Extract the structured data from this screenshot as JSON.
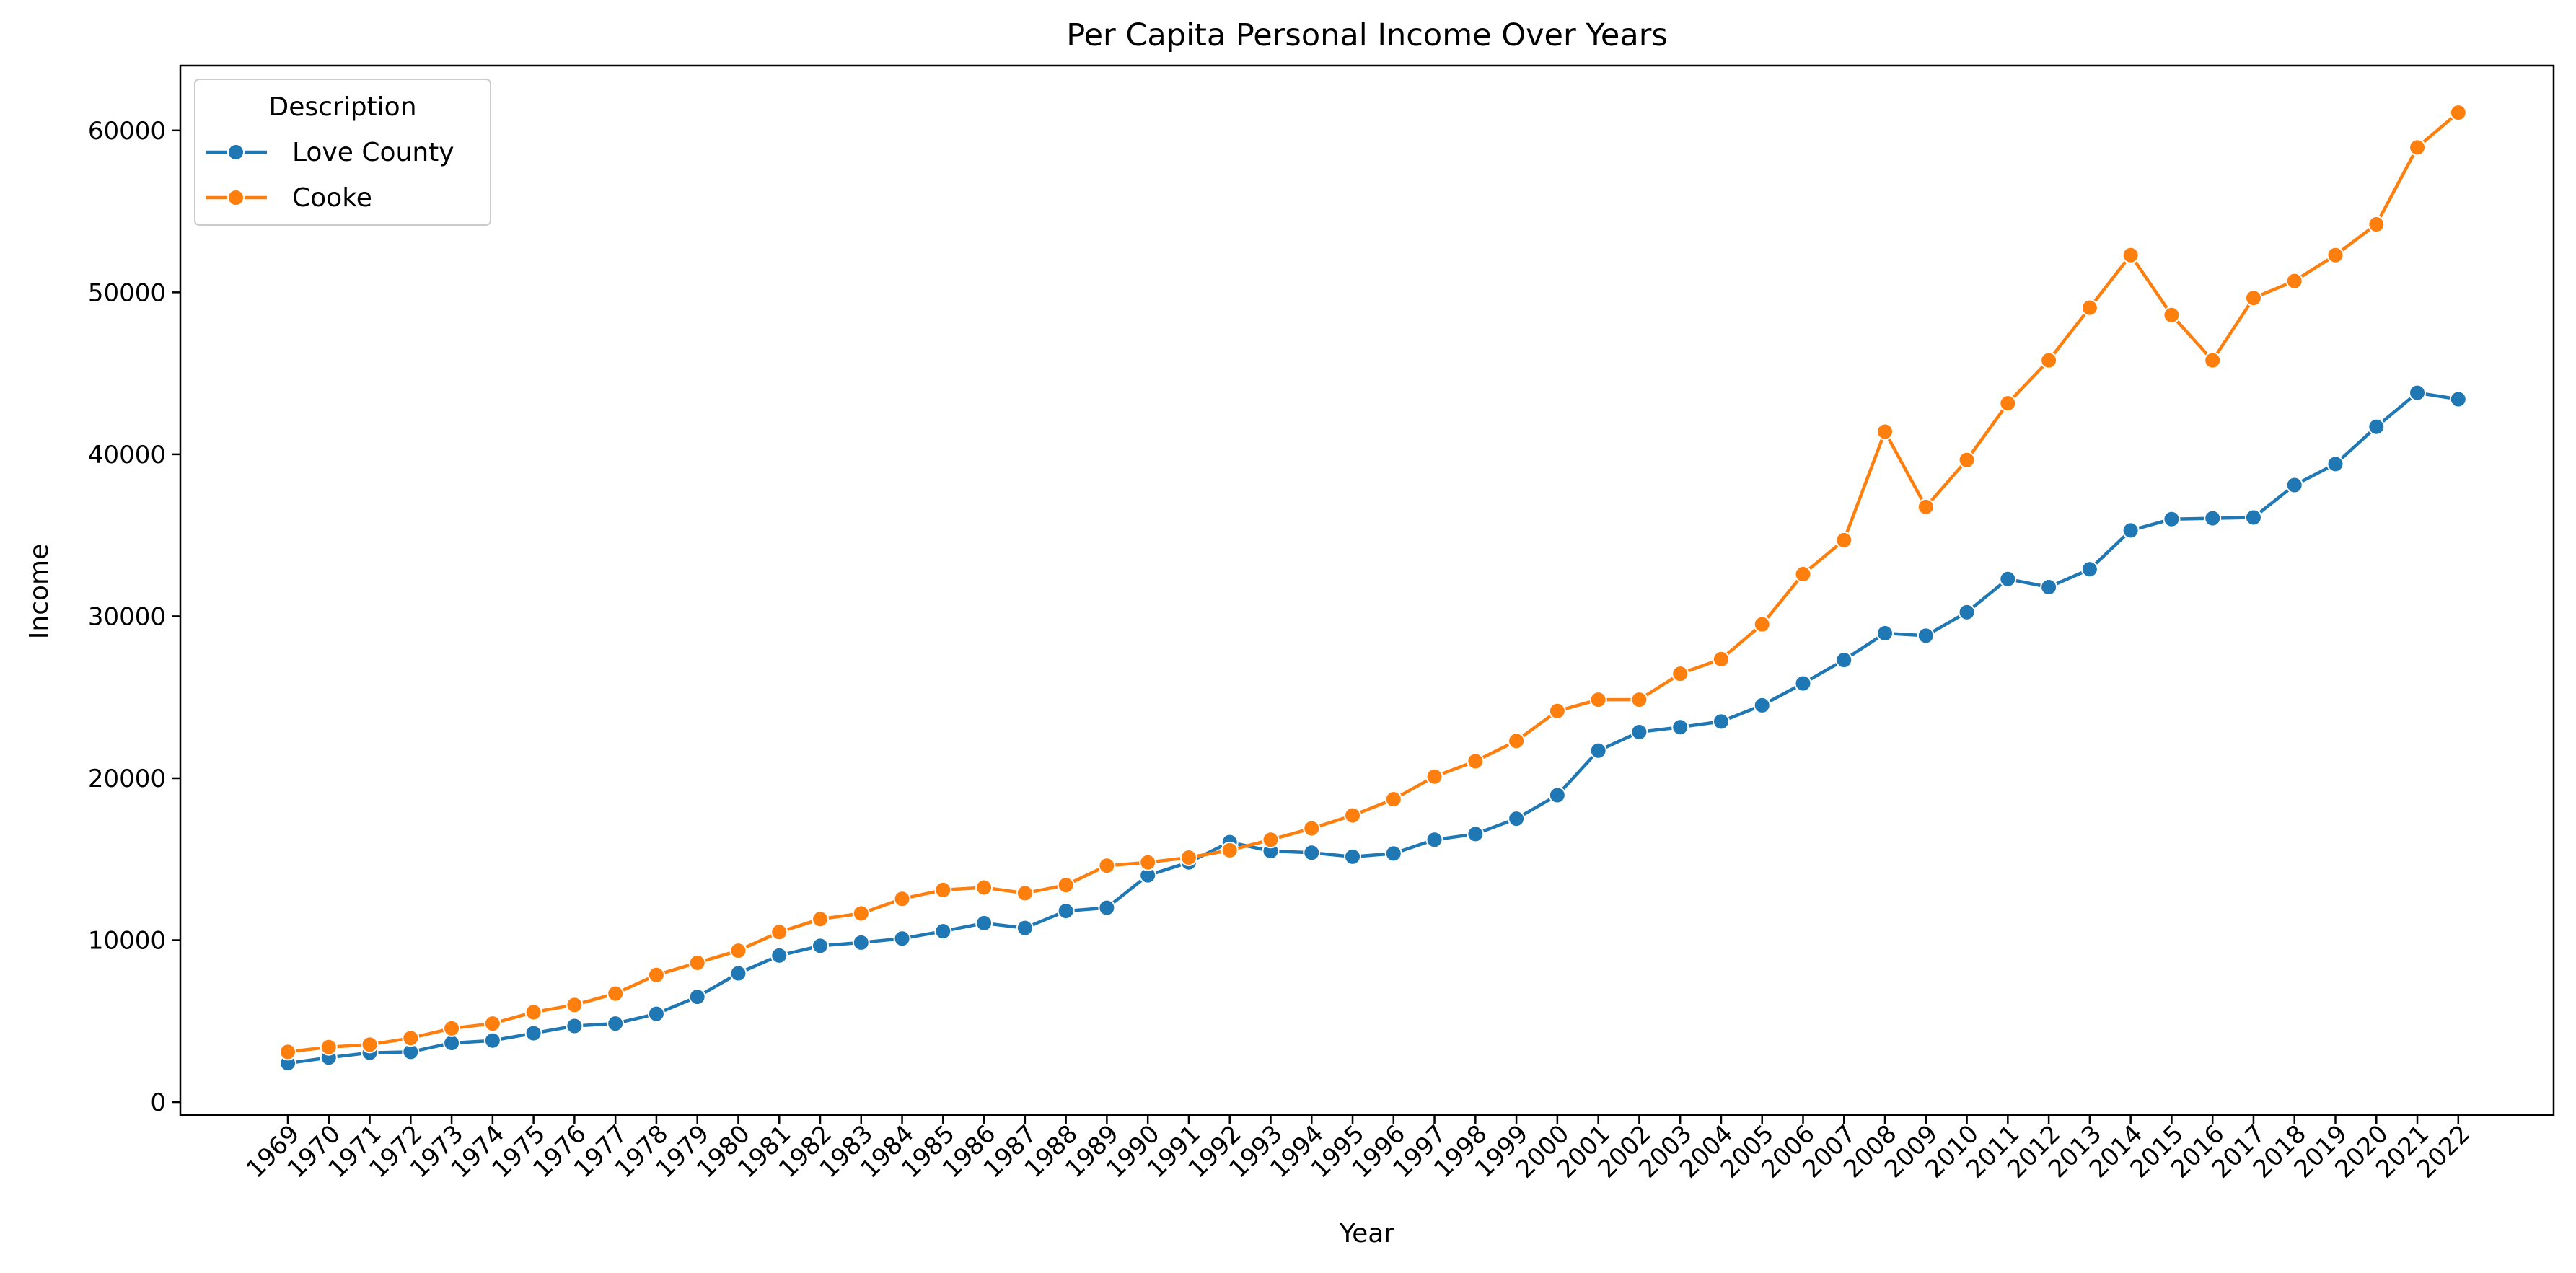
{
  "chart_data": {
    "type": "line",
    "title": "Per Capita Personal Income Over Years",
    "xlabel": "Year",
    "ylabel": "Income",
    "ylim": [
      -800,
      64000
    ],
    "yticks": [
      0,
      10000,
      20000,
      30000,
      40000,
      50000,
      60000
    ],
    "grid": false,
    "legend": {
      "title": "Description",
      "position": "top-left"
    },
    "categories": [
      "1969",
      "1970",
      "1971",
      "1972",
      "1973",
      "1974",
      "1975",
      "1976",
      "1977",
      "1978",
      "1979",
      "1980",
      "1981",
      "1982",
      "1983",
      "1984",
      "1985",
      "1986",
      "1987",
      "1988",
      "1989",
      "1990",
      "1991",
      "1992",
      "1993",
      "1994",
      "1995",
      "1996",
      "1997",
      "1998",
      "1999",
      "2000",
      "2001",
      "2002",
      "2003",
      "2004",
      "2005",
      "2006",
      "2007",
      "2008",
      "2009",
      "2010",
      "2011",
      "2012",
      "2013",
      "2014",
      "2015",
      "2016",
      "2017",
      "2018",
      "2019",
      "2020",
      "2021",
      "2022"
    ],
    "series": [
      {
        "name": "Love County",
        "color": "#1f77b4",
        "values": [
          2400,
          2750,
          3050,
          3100,
          3650,
          3800,
          4250,
          4700,
          4850,
          5450,
          6500,
          7950,
          9050,
          9650,
          9850,
          10100,
          10550,
          11050,
          10750,
          11800,
          12000,
          14000,
          14800,
          16050,
          15500,
          15400,
          15150,
          15350,
          16200,
          16550,
          17500,
          18950,
          21700,
          22850,
          23150,
          23500,
          24500,
          25850,
          27300,
          28950,
          28800,
          30250,
          32300,
          31800,
          32900,
          35300,
          36000,
          36050,
          36100,
          38100,
          39400,
          41700,
          43800,
          43400
        ]
      },
      {
        "name": "Cooke",
        "color": "#ff7f0e",
        "values": [
          3100,
          3400,
          3550,
          3950,
          4550,
          4850,
          5550,
          6000,
          6700,
          7850,
          8600,
          9350,
          10500,
          11300,
          11650,
          12550,
          13100,
          13250,
          12900,
          13400,
          14600,
          14800,
          15100,
          15550,
          16200,
          16900,
          17700,
          18700,
          20100,
          21050,
          22300,
          24150,
          24850,
          24850,
          26450,
          27350,
          29500,
          32600,
          34700,
          41400,
          36750,
          39650,
          43150,
          45800,
          49050,
          52300,
          48600,
          45800,
          49650,
          50700,
          52300,
          54200,
          58950,
          61100
        ]
      }
    ]
  }
}
